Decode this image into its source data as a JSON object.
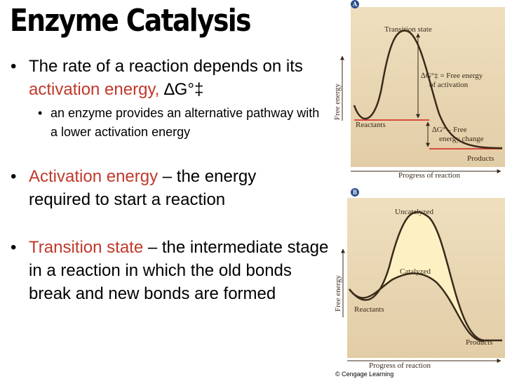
{
  "title": "Enzyme Catalysis",
  "bullets": [
    {
      "lead": "The rate of a reaction depends on its ",
      "term": "activation energy,",
      "rest": " ∆G°‡"
    },
    {
      "text": "an enzyme provides an alternative pathway with a lower activation energy"
    },
    {
      "term": "Activation energy",
      "rest": " – the energy required to start a reaction"
    },
    {
      "term": "Transition state",
      "rest": " – the intermediate stage in a reaction in which the old bonds break and new bonds are formed"
    }
  ],
  "figure_a": {
    "badge": "A",
    "y_axis": "Free energy",
    "x_axis": "Progress of reaction",
    "transition_state": "Transition state",
    "activation": [
      "∆G°‡ = Free energy",
      "of activation"
    ],
    "reactants": "Reactants",
    "energy_change": [
      "∆G° – Free",
      "energy change"
    ],
    "products": "Products"
  },
  "figure_b": {
    "badge": "B",
    "y_axis": "Free energy",
    "x_axis": "Progress of reaction",
    "uncatalyzed": "Uncatalyzed",
    "catalyzed": "Catalyzed",
    "reactants": "Reactants",
    "products": "Products"
  },
  "credit": "© Cengage Learning"
}
